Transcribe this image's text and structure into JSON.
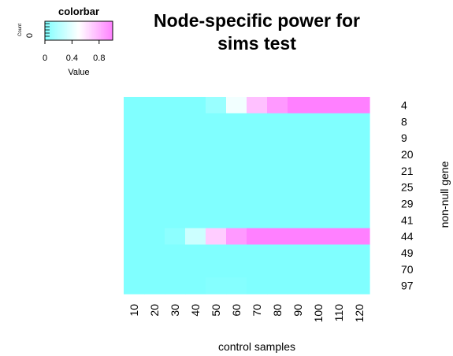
{
  "chart_data": {
    "type": "heatmap",
    "title_lines": [
      "Node-specific power for",
      "sims test"
    ],
    "xlabel": "control samples",
    "ylabel": "non-null gene",
    "x_categories": [
      "10",
      "20",
      "30",
      "40",
      "50",
      "60",
      "70",
      "80",
      "90",
      "100",
      "110",
      "120"
    ],
    "y_categories": [
      "4",
      "8",
      "9",
      "20",
      "21",
      "25",
      "29",
      "41",
      "44",
      "49",
      "70",
      "97"
    ],
    "values": [
      [
        0,
        0,
        0,
        0,
        0.1,
        0.45,
        0.75,
        0.9,
        1.0,
        1.0,
        1.0,
        1.0
      ],
      [
        0,
        0,
        0,
        0,
        0,
        0,
        0,
        0,
        0,
        0,
        0,
        0
      ],
      [
        0,
        0,
        0,
        0,
        0,
        0,
        0,
        0,
        0,
        0,
        0,
        0
      ],
      [
        0,
        0,
        0,
        0,
        0,
        0,
        0,
        0,
        0,
        0,
        0,
        0
      ],
      [
        0,
        0,
        0,
        0,
        0,
        0,
        0,
        0,
        0,
        0,
        0,
        0
      ],
      [
        0,
        0,
        0,
        0,
        0,
        0,
        0,
        0,
        0,
        0,
        0,
        0
      ],
      [
        0,
        0,
        0,
        0,
        0,
        0,
        0,
        0,
        0,
        0,
        0,
        0
      ],
      [
        0,
        0,
        0,
        0,
        0,
        0,
        0,
        0,
        0,
        0,
        0,
        0
      ],
      [
        0,
        0,
        0.05,
        0.3,
        0.7,
        0.9,
        1.0,
        1.0,
        1.0,
        1.0,
        1.0,
        1.0
      ],
      [
        0,
        0,
        0,
        0,
        0,
        0,
        0,
        0,
        0,
        0,
        0,
        0
      ],
      [
        0,
        0,
        0,
        0,
        0,
        0,
        0,
        0,
        0,
        0,
        0,
        0
      ],
      [
        0,
        0,
        0,
        0,
        0.02,
        0.02,
        0,
        0,
        0,
        0,
        0,
        0
      ]
    ],
    "value_range": [
      0,
      1
    ],
    "colors": {
      "low": "#80ffff",
      "mid": "#ffffff",
      "high": "#ff80ff"
    },
    "colorbar": {
      "title": "colorbar",
      "count_label": "Count",
      "count_tick": "0",
      "xlabel": "Value",
      "ticks": [
        0,
        0.4,
        0.8
      ],
      "tick_labels": [
        "0",
        "0.4",
        "0.8"
      ]
    }
  }
}
